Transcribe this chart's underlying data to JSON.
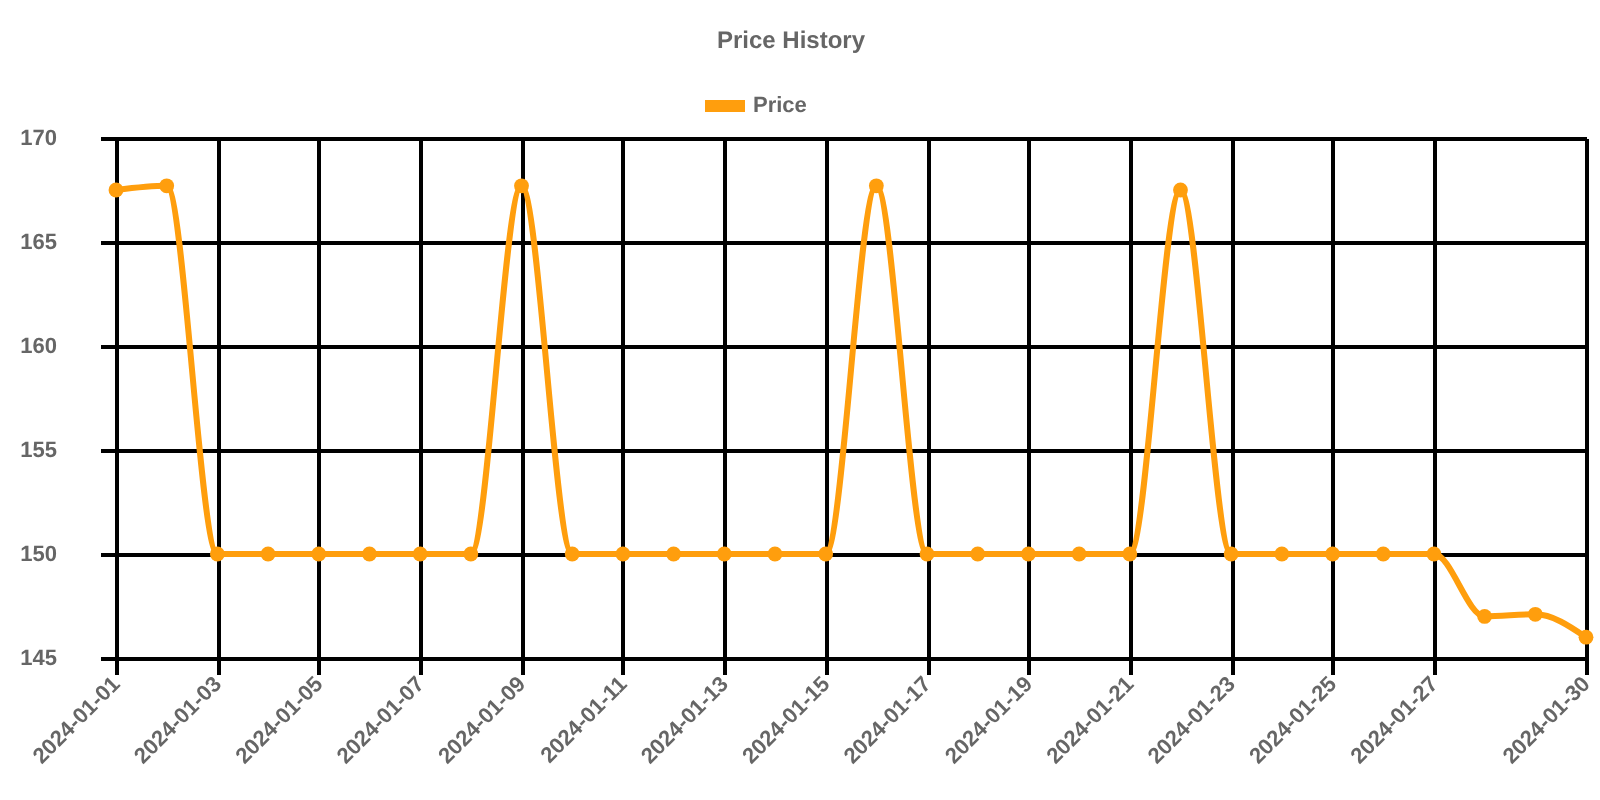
{
  "chart_data": {
    "type": "line",
    "title": "Price History",
    "categories": [
      "2024-01-01",
      null,
      "2024-01-03",
      null,
      "2024-01-05",
      null,
      "2024-01-07",
      null,
      "2024-01-09",
      null,
      "2024-01-11",
      null,
      "2024-01-13",
      null,
      "2024-01-15",
      null,
      "2024-01-17",
      null,
      "2024-01-19",
      null,
      "2024-01-21",
      null,
      "2024-01-23",
      null,
      "2024-01-25",
      null,
      "2024-01-27",
      null,
      null,
      "2024-01-30"
    ],
    "series": [
      {
        "name": "Price",
        "color": "#ff9e0d",
        "values": [
          167.5,
          167.7,
          150,
          150,
          150,
          150,
          150,
          150,
          167.7,
          150,
          150,
          150,
          150,
          150,
          150,
          167.7,
          150,
          150,
          150,
          150,
          150,
          167.5,
          150,
          150,
          150,
          150,
          150,
          147,
          147.1,
          146
        ]
      }
    ],
    "ylim": [
      145,
      170
    ],
    "yticks": [
      145,
      150,
      155,
      160,
      165,
      170
    ],
    "grid": true,
    "legend": "top",
    "marker": "circle",
    "line_style": "solid"
  }
}
